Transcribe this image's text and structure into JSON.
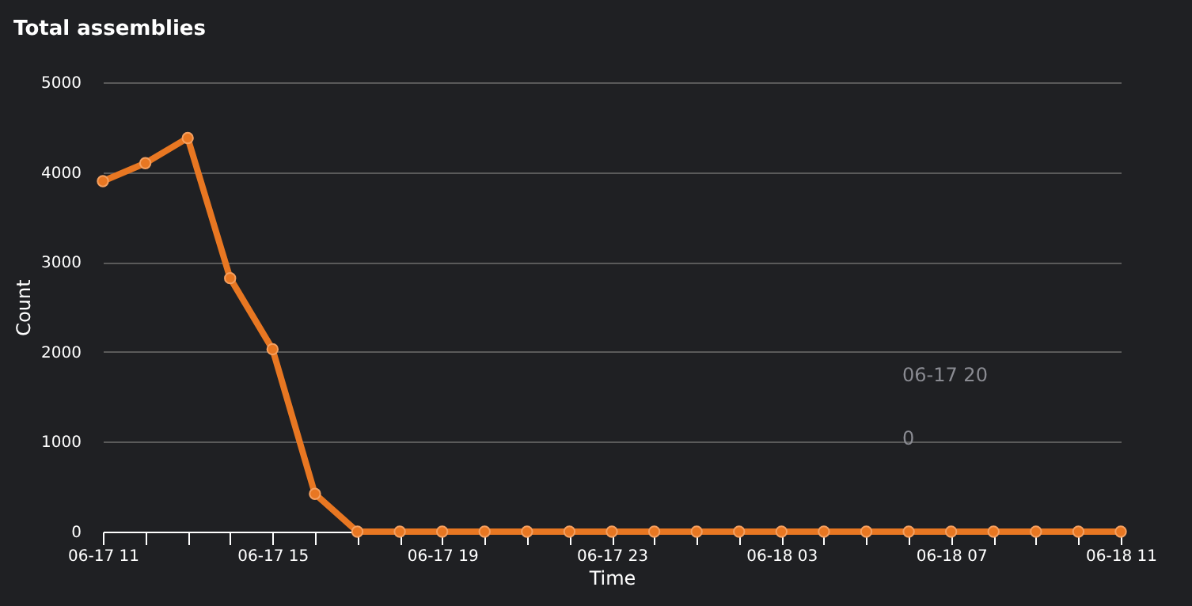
{
  "chart_data": {
    "type": "line",
    "title": "Total assemblies",
    "xlabel": "Time",
    "ylabel": "Count",
    "categories": [
      "06-17 11",
      null,
      null,
      null,
      "06-17 15",
      null,
      null,
      null,
      "06-17 19",
      null,
      null,
      null,
      "06-17 23",
      null,
      null,
      null,
      "06-18 03",
      null,
      null,
      null,
      "06-18 07",
      null,
      null,
      null,
      "06-18 11"
    ],
    "series": [
      {
        "color": "#e87722",
        "values": [
          3900,
          4100,
          4380,
          2820,
          2030,
          420,
          0,
          0,
          0,
          0,
          0,
          0,
          0,
          0,
          0,
          0,
          0,
          0,
          0,
          0,
          0,
          0,
          0,
          0,
          0
        ]
      }
    ],
    "ylim": [
      0,
      5000
    ],
    "yticks": [
      0,
      1000,
      2000,
      3000,
      4000,
      5000
    ],
    "annotations": [
      "06-17 20",
      "0"
    ],
    "grid": "y",
    "marker": "circle",
    "line_style": "solid"
  }
}
